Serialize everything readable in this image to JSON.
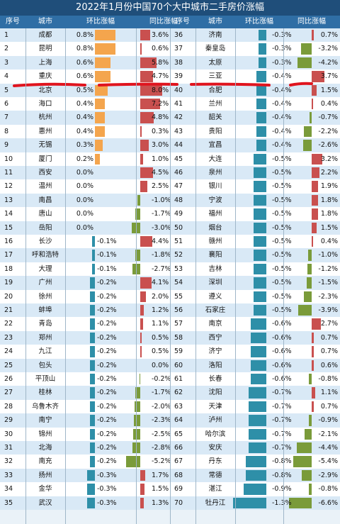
{
  "title": "2022年1月份中国70个大中城市二手房价涨幅",
  "header": {
    "rank_left": "序号",
    "city_left": "城市",
    "mom_left": "环比涨幅",
    "yoy_left": "同比涨幅",
    "rank_right": "序号",
    "city_right": "城市",
    "mom_right": "环比涨幅",
    "yoy_right": "同比涨幅"
  },
  "colors": {
    "mom_positive": "#f4a54d",
    "mom_negative": "#2e8fa8",
    "yoy_positive": "#c9504f",
    "yoy_negative": "#7a9b3a",
    "highlight_line": "#e0141e"
  },
  "chart_data": {
    "type": "table",
    "title": "2022年1月份中国70个大中城市二手房价涨幅",
    "columns": [
      "序号",
      "城市",
      "环比涨幅",
      "同比涨幅"
    ],
    "rows_left": [
      {
        "rank": "1",
        "city": "成都",
        "mom": 0.8,
        "yoy": 3.6
      },
      {
        "rank": "2",
        "city": "昆明",
        "mom": 0.8,
        "yoy": 0.6
      },
      {
        "rank": "3",
        "city": "上海",
        "mom": 0.6,
        "yoy": 5.8
      },
      {
        "rank": "4",
        "city": "重庆",
        "mom": 0.6,
        "yoy": 4.7
      },
      {
        "rank": "5",
        "city": "北京",
        "mom": 0.5,
        "yoy": 8.0
      },
      {
        "rank": "6",
        "city": "海口",
        "mom": 0.4,
        "yoy": 7.2
      },
      {
        "rank": "7",
        "city": "杭州",
        "mom": 0.4,
        "yoy": 4.8
      },
      {
        "rank": "8",
        "city": "惠州",
        "mom": 0.4,
        "yoy": 0.3
      },
      {
        "rank": "9",
        "city": "无锡",
        "mom": 0.3,
        "yoy": 3.0
      },
      {
        "rank": "10",
        "city": "厦门",
        "mom": 0.2,
        "yoy": 1.0
      },
      {
        "rank": "11",
        "city": "西安",
        "mom": 0.0,
        "yoy": 4.5
      },
      {
        "rank": "12",
        "city": "温州",
        "mom": 0.0,
        "yoy": 2.5
      },
      {
        "rank": "13",
        "city": "南昌",
        "mom": 0.0,
        "yoy": -1.0
      },
      {
        "rank": "14",
        "city": "唐山",
        "mom": 0.0,
        "yoy": -1.7
      },
      {
        "rank": "15",
        "city": "岳阳",
        "mom": 0.0,
        "yoy": -3.0
      },
      {
        "rank": "16",
        "city": "长沙",
        "mom": -0.1,
        "yoy": 4.4
      },
      {
        "rank": "17",
        "city": "呼和浩特",
        "mom": -0.1,
        "yoy": -1.8
      },
      {
        "rank": "18",
        "city": "大理",
        "mom": -0.1,
        "yoy": -2.7
      },
      {
        "rank": "19",
        "city": "广州",
        "mom": -0.2,
        "yoy": 4.1
      },
      {
        "rank": "20",
        "city": "徐州",
        "mom": -0.2,
        "yoy": 2.0
      },
      {
        "rank": "21",
        "city": "蚌埠",
        "mom": -0.2,
        "yoy": 1.2
      },
      {
        "rank": "22",
        "city": "青岛",
        "mom": -0.2,
        "yoy": 1.1
      },
      {
        "rank": "23",
        "city": "郑州",
        "mom": -0.2,
        "yoy": 0.5
      },
      {
        "rank": "24",
        "city": "九江",
        "mom": -0.2,
        "yoy": 0.5
      },
      {
        "rank": "25",
        "city": "包头",
        "mom": -0.2,
        "yoy": 0.0
      },
      {
        "rank": "26",
        "city": "平顶山",
        "mom": -0.2,
        "yoy": -0.2
      },
      {
        "rank": "27",
        "city": "桂林",
        "mom": -0.2,
        "yoy": -1.7
      },
      {
        "rank": "28",
        "city": "乌鲁木齐",
        "mom": -0.2,
        "yoy": -2.0
      },
      {
        "rank": "29",
        "city": "南宁",
        "mom": -0.2,
        "yoy": -2.3
      },
      {
        "rank": "30",
        "city": "锦州",
        "mom": -0.2,
        "yoy": -2.5
      },
      {
        "rank": "31",
        "city": "北海",
        "mom": -0.2,
        "yoy": -2.8
      },
      {
        "rank": "32",
        "city": "南充",
        "mom": -0.2,
        "yoy": -5.2
      },
      {
        "rank": "33",
        "city": "扬州",
        "mom": -0.3,
        "yoy": 1.7
      },
      {
        "rank": "34",
        "city": "金华",
        "mom": -0.3,
        "yoy": 1.5
      },
      {
        "rank": "35",
        "city": "武汉",
        "mom": -0.3,
        "yoy": 1.3
      }
    ],
    "rows_right": [
      {
        "rank": "36",
        "city": "济南",
        "mom": -0.3,
        "yoy": 0.7
      },
      {
        "rank": "37",
        "city": "秦皇岛",
        "mom": -0.3,
        "yoy": -3.2
      },
      {
        "rank": "38",
        "city": "太原",
        "mom": -0.3,
        "yoy": -4.2
      },
      {
        "rank": "39",
        "city": "三亚",
        "mom": -0.4,
        "yoy": 3.7
      },
      {
        "rank": "40",
        "city": "合肥",
        "mom": -0.4,
        "yoy": 1.5
      },
      {
        "rank": "41",
        "city": "兰州",
        "mom": -0.4,
        "yoy": 0.4
      },
      {
        "rank": "42",
        "city": "韶关",
        "mom": -0.4,
        "yoy": -0.7
      },
      {
        "rank": "43",
        "city": "贵阳",
        "mom": -0.4,
        "yoy": -2.2
      },
      {
        "rank": "44",
        "city": "宜昌",
        "mom": -0.4,
        "yoy": -2.6
      },
      {
        "rank": "45",
        "city": "大连",
        "mom": -0.5,
        "yoy": 3.2
      },
      {
        "rank": "46",
        "city": "泉州",
        "mom": -0.5,
        "yoy": 2.2
      },
      {
        "rank": "47",
        "city": "银川",
        "mom": -0.5,
        "yoy": 1.9
      },
      {
        "rank": "48",
        "city": "宁波",
        "mom": -0.5,
        "yoy": 1.8
      },
      {
        "rank": "49",
        "city": "福州",
        "mom": -0.5,
        "yoy": 1.8
      },
      {
        "rank": "50",
        "city": "烟台",
        "mom": -0.5,
        "yoy": 1.5
      },
      {
        "rank": "51",
        "city": "赣州",
        "mom": -0.5,
        "yoy": 0.4
      },
      {
        "rank": "52",
        "city": "襄阳",
        "mom": -0.5,
        "yoy": -1.0
      },
      {
        "rank": "53",
        "city": "吉林",
        "mom": -0.5,
        "yoy": -1.2
      },
      {
        "rank": "54",
        "city": "深圳",
        "mom": -0.5,
        "yoy": -1.5
      },
      {
        "rank": "55",
        "city": "遵义",
        "mom": -0.5,
        "yoy": -2.3
      },
      {
        "rank": "56",
        "city": "石家庄",
        "mom": -0.5,
        "yoy": -3.9
      },
      {
        "rank": "57",
        "city": "南京",
        "mom": -0.6,
        "yoy": 2.7
      },
      {
        "rank": "58",
        "city": "西宁",
        "mom": -0.6,
        "yoy": 0.7
      },
      {
        "rank": "59",
        "city": "济宁",
        "mom": -0.6,
        "yoy": 0.7
      },
      {
        "rank": "60",
        "city": "洛阳",
        "mom": -0.6,
        "yoy": 0.6
      },
      {
        "rank": "61",
        "city": "长春",
        "mom": -0.6,
        "yoy": -0.8
      },
      {
        "rank": "62",
        "city": "沈阳",
        "mom": -0.7,
        "yoy": 1.1
      },
      {
        "rank": "63",
        "city": "天津",
        "mom": -0.7,
        "yoy": 0.7
      },
      {
        "rank": "64",
        "city": "泸州",
        "mom": -0.7,
        "yoy": -0.9
      },
      {
        "rank": "65",
        "city": "哈尔滨",
        "mom": -0.7,
        "yoy": -2.1
      },
      {
        "rank": "66",
        "city": "安庆",
        "mom": -0.7,
        "yoy": -4.4
      },
      {
        "rank": "67",
        "city": "丹东",
        "mom": -0.8,
        "yoy": -5.4
      },
      {
        "rank": "68",
        "city": "常德",
        "mom": -0.8,
        "yoy": -2.9
      },
      {
        "rank": "69",
        "city": "湛江",
        "mom": -0.9,
        "yoy": -0.8
      },
      {
        "rank": "70",
        "city": "牡丹江",
        "mom": -1.3,
        "yoy": -6.6
      }
    ]
  }
}
